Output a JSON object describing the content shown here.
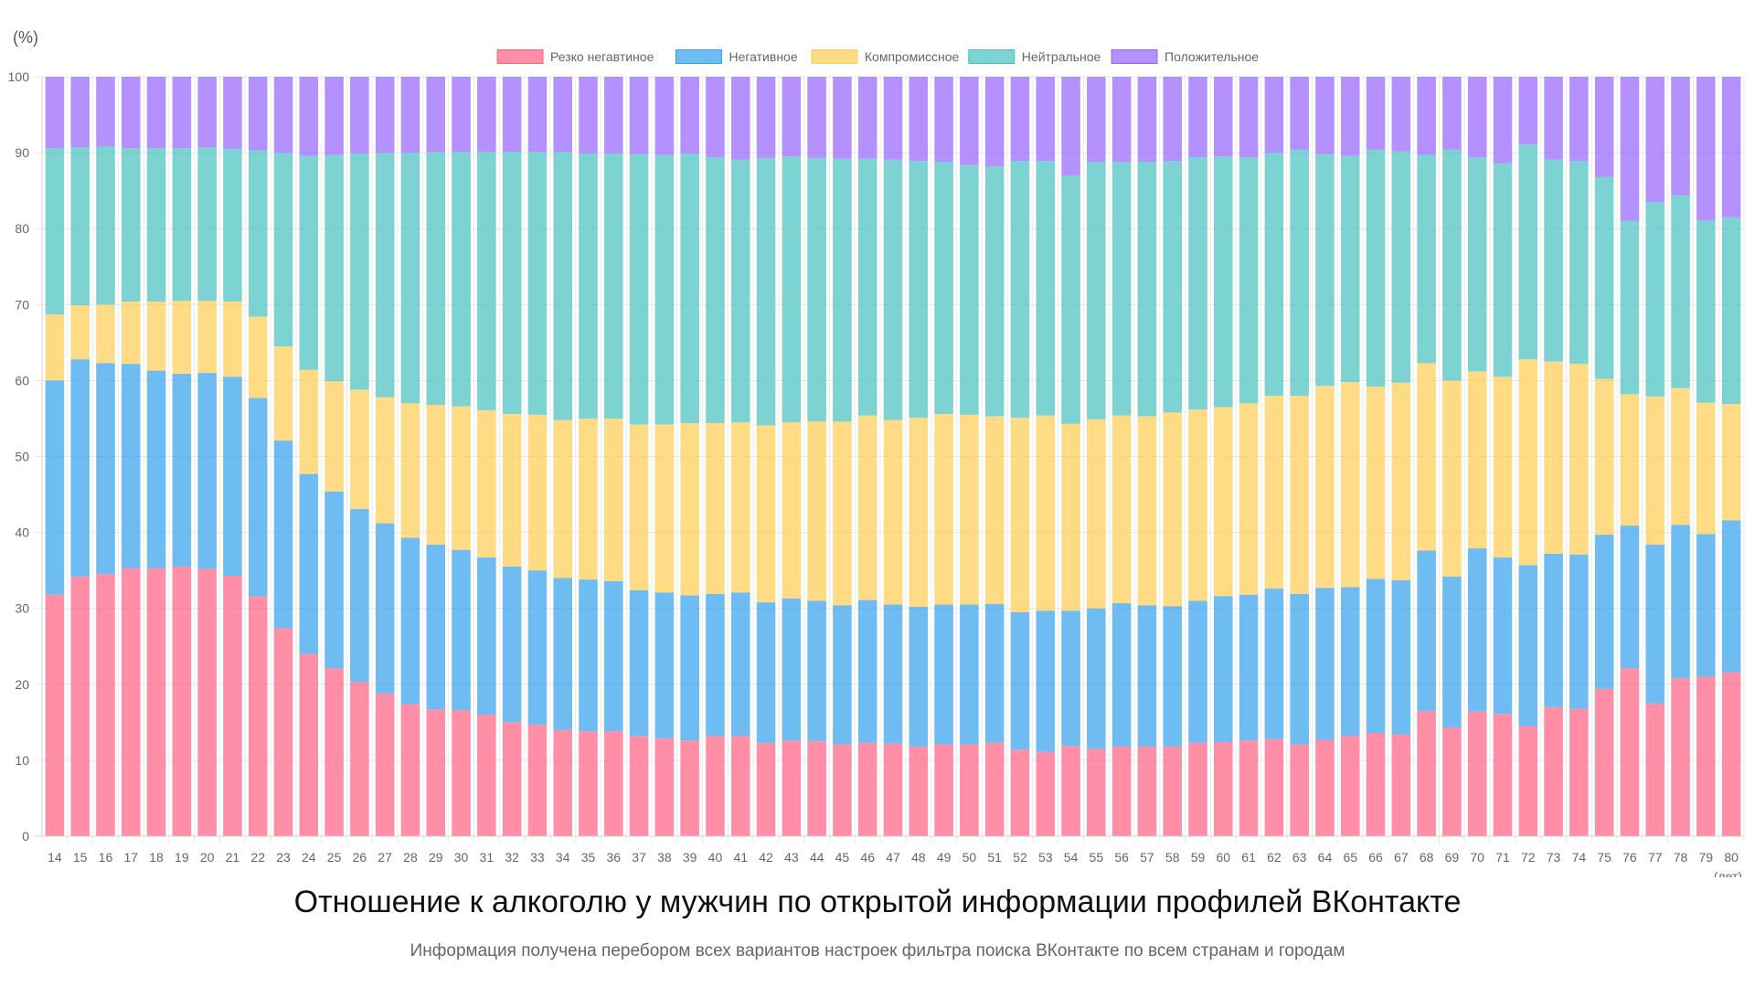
{
  "chart_data": {
    "type": "bar",
    "stacked": true,
    "title": "Отношение к алкоголю у мужчин по открытой информации профилей ВКонтакте",
    "subtitle": "Информация получена перебором всех вариантов настроек фильтра поиска ВКонтакте по всем странам и городам",
    "ylabel": "(%)",
    "xlabel": "(лет)",
    "ylim": [
      0,
      100
    ],
    "yticks": [
      "0",
      "10",
      "20",
      "30",
      "40",
      "50",
      "60",
      "70",
      "80",
      "90",
      "100"
    ],
    "grid": true,
    "legend_position": "top",
    "categories": [
      "14",
      "15",
      "16",
      "17",
      "18",
      "19",
      "20",
      "21",
      "22",
      "23",
      "24",
      "25",
      "26",
      "27",
      "28",
      "29",
      "30",
      "31",
      "32",
      "33",
      "34",
      "35",
      "36",
      "37",
      "38",
      "39",
      "40",
      "41",
      "42",
      "43",
      "44",
      "45",
      "46",
      "47",
      "48",
      "49",
      "50",
      "51",
      "52",
      "53",
      "54",
      "55",
      "56",
      "57",
      "58",
      "59",
      "60",
      "61",
      "62",
      "63",
      "64",
      "65",
      "66",
      "67",
      "68",
      "69",
      "70",
      "71",
      "72",
      "73",
      "74",
      "75",
      "76",
      "77",
      "78",
      "79",
      "80"
    ],
    "series": [
      {
        "name": "Резко негавтиное",
        "color": "#ff6384",
        "values": [
          31.8,
          34.2,
          34.5,
          35.3,
          35.3,
          35.5,
          35.2,
          34.3,
          31.6,
          27.4,
          24.0,
          22.1,
          20.3,
          18.8,
          17.4,
          16.7,
          16.6,
          16.0,
          15.0,
          14.7,
          14.0,
          13.8,
          13.8,
          13.2,
          12.9,
          12.6,
          13.2,
          13.2,
          12.3,
          12.6,
          12.5,
          12.1,
          12.3,
          12.2,
          11.8,
          12.1,
          12.1,
          12.3,
          11.4,
          11.1,
          11.9,
          11.5,
          11.8,
          11.8,
          11.8,
          12.3,
          12.4,
          12.6,
          12.8,
          12.1,
          12.7,
          13.2,
          13.6,
          13.4,
          16.5,
          14.3,
          16.4,
          16.1,
          14.5,
          17.0,
          16.8,
          19.4,
          22.1,
          17.5,
          20.8,
          21.0,
          21.6
        ]
      },
      {
        "name": "Негативное",
        "color": "#36a2eb",
        "values": [
          28.2,
          28.6,
          27.8,
          26.9,
          26.0,
          25.4,
          25.8,
          26.2,
          26.1,
          24.7,
          23.7,
          23.3,
          22.8,
          22.4,
          21.9,
          21.7,
          21.1,
          20.7,
          20.5,
          20.3,
          20.0,
          20.0,
          19.8,
          19.2,
          19.2,
          19.1,
          18.7,
          18.9,
          18.5,
          18.7,
          18.5,
          18.3,
          18.8,
          18.3,
          18.4,
          18.4,
          18.4,
          18.3,
          18.1,
          18.6,
          17.8,
          18.5,
          18.9,
          18.6,
          18.5,
          18.7,
          19.2,
          19.2,
          19.8,
          19.8,
          20.0,
          19.6,
          20.3,
          20.3,
          21.1,
          19.9,
          21.5,
          20.6,
          21.2,
          20.2,
          20.3,
          20.3,
          18.8,
          20.9,
          20.2,
          18.8,
          20.0
        ]
      },
      {
        "name": "Компромиссное",
        "color": "#ffcd56",
        "values": [
          8.7,
          7.1,
          7.7,
          8.2,
          9.1,
          9.6,
          9.5,
          9.9,
          10.7,
          12.4,
          13.7,
          14.5,
          15.7,
          16.6,
          17.7,
          18.4,
          18.9,
          19.4,
          20.1,
          20.5,
          20.8,
          21.2,
          21.4,
          21.8,
          22.1,
          22.7,
          22.5,
          22.4,
          23.3,
          23.2,
          23.6,
          24.2,
          24.3,
          24.3,
          24.9,
          25.1,
          25.0,
          24.7,
          25.6,
          25.7,
          24.6,
          24.9,
          24.7,
          24.9,
          25.5,
          25.2,
          24.9,
          25.2,
          25.4,
          26.1,
          26.6,
          27.0,
          25.3,
          26.0,
          24.7,
          25.8,
          23.3,
          23.8,
          27.1,
          25.3,
          25.1,
          20.5,
          17.3,
          19.5,
          18.0,
          17.3,
          15.3
        ]
      },
      {
        "name": "Нейтральное",
        "color": "#4bc0c0",
        "values": [
          21.9,
          20.8,
          20.8,
          20.2,
          20.2,
          20.1,
          20.2,
          20.1,
          21.9,
          25.5,
          28.2,
          29.8,
          31.1,
          32.2,
          33.0,
          33.3,
          33.5,
          34.0,
          34.5,
          34.6,
          35.3,
          34.9,
          34.9,
          35.6,
          35.5,
          35.5,
          35.0,
          34.6,
          35.2,
          35.0,
          34.7,
          34.6,
          33.8,
          34.3,
          33.8,
          33.2,
          32.9,
          32.9,
          33.8,
          33.5,
          32.7,
          33.9,
          33.4,
          33.5,
          33.1,
          33.2,
          33.0,
          32.4,
          32.0,
          32.4,
          30.5,
          29.8,
          31.2,
          30.5,
          27.4,
          30.4,
          28.2,
          28.1,
          28.3,
          26.6,
          26.7,
          26.6,
          22.8,
          25.6,
          25.4,
          24.0,
          24.6
        ]
      },
      {
        "name": "Положительное",
        "color": "#9966ff",
        "values": [
          9.4,
          9.3,
          9.2,
          9.4,
          9.4,
          9.4,
          9.3,
          9.5,
          9.7,
          10.0,
          10.4,
          10.3,
          10.1,
          10.0,
          10.0,
          9.9,
          9.9,
          9.9,
          9.9,
          9.9,
          9.9,
          10.1,
          10.1,
          10.2,
          10.3,
          10.1,
          10.6,
          10.9,
          10.7,
          10.5,
          10.7,
          10.8,
          10.8,
          10.9,
          11.1,
          11.2,
          11.6,
          11.8,
          11.1,
          11.1,
          13.0,
          11.2,
          11.2,
          11.2,
          11.1,
          10.6,
          10.5,
          10.6,
          10.0,
          9.6,
          10.2,
          10.4,
          9.6,
          9.8,
          10.3,
          9.6,
          10.6,
          11.4,
          8.9,
          10.9,
          11.1,
          13.2,
          19.0,
          16.5,
          15.6,
          18.9,
          18.5
        ]
      }
    ]
  }
}
